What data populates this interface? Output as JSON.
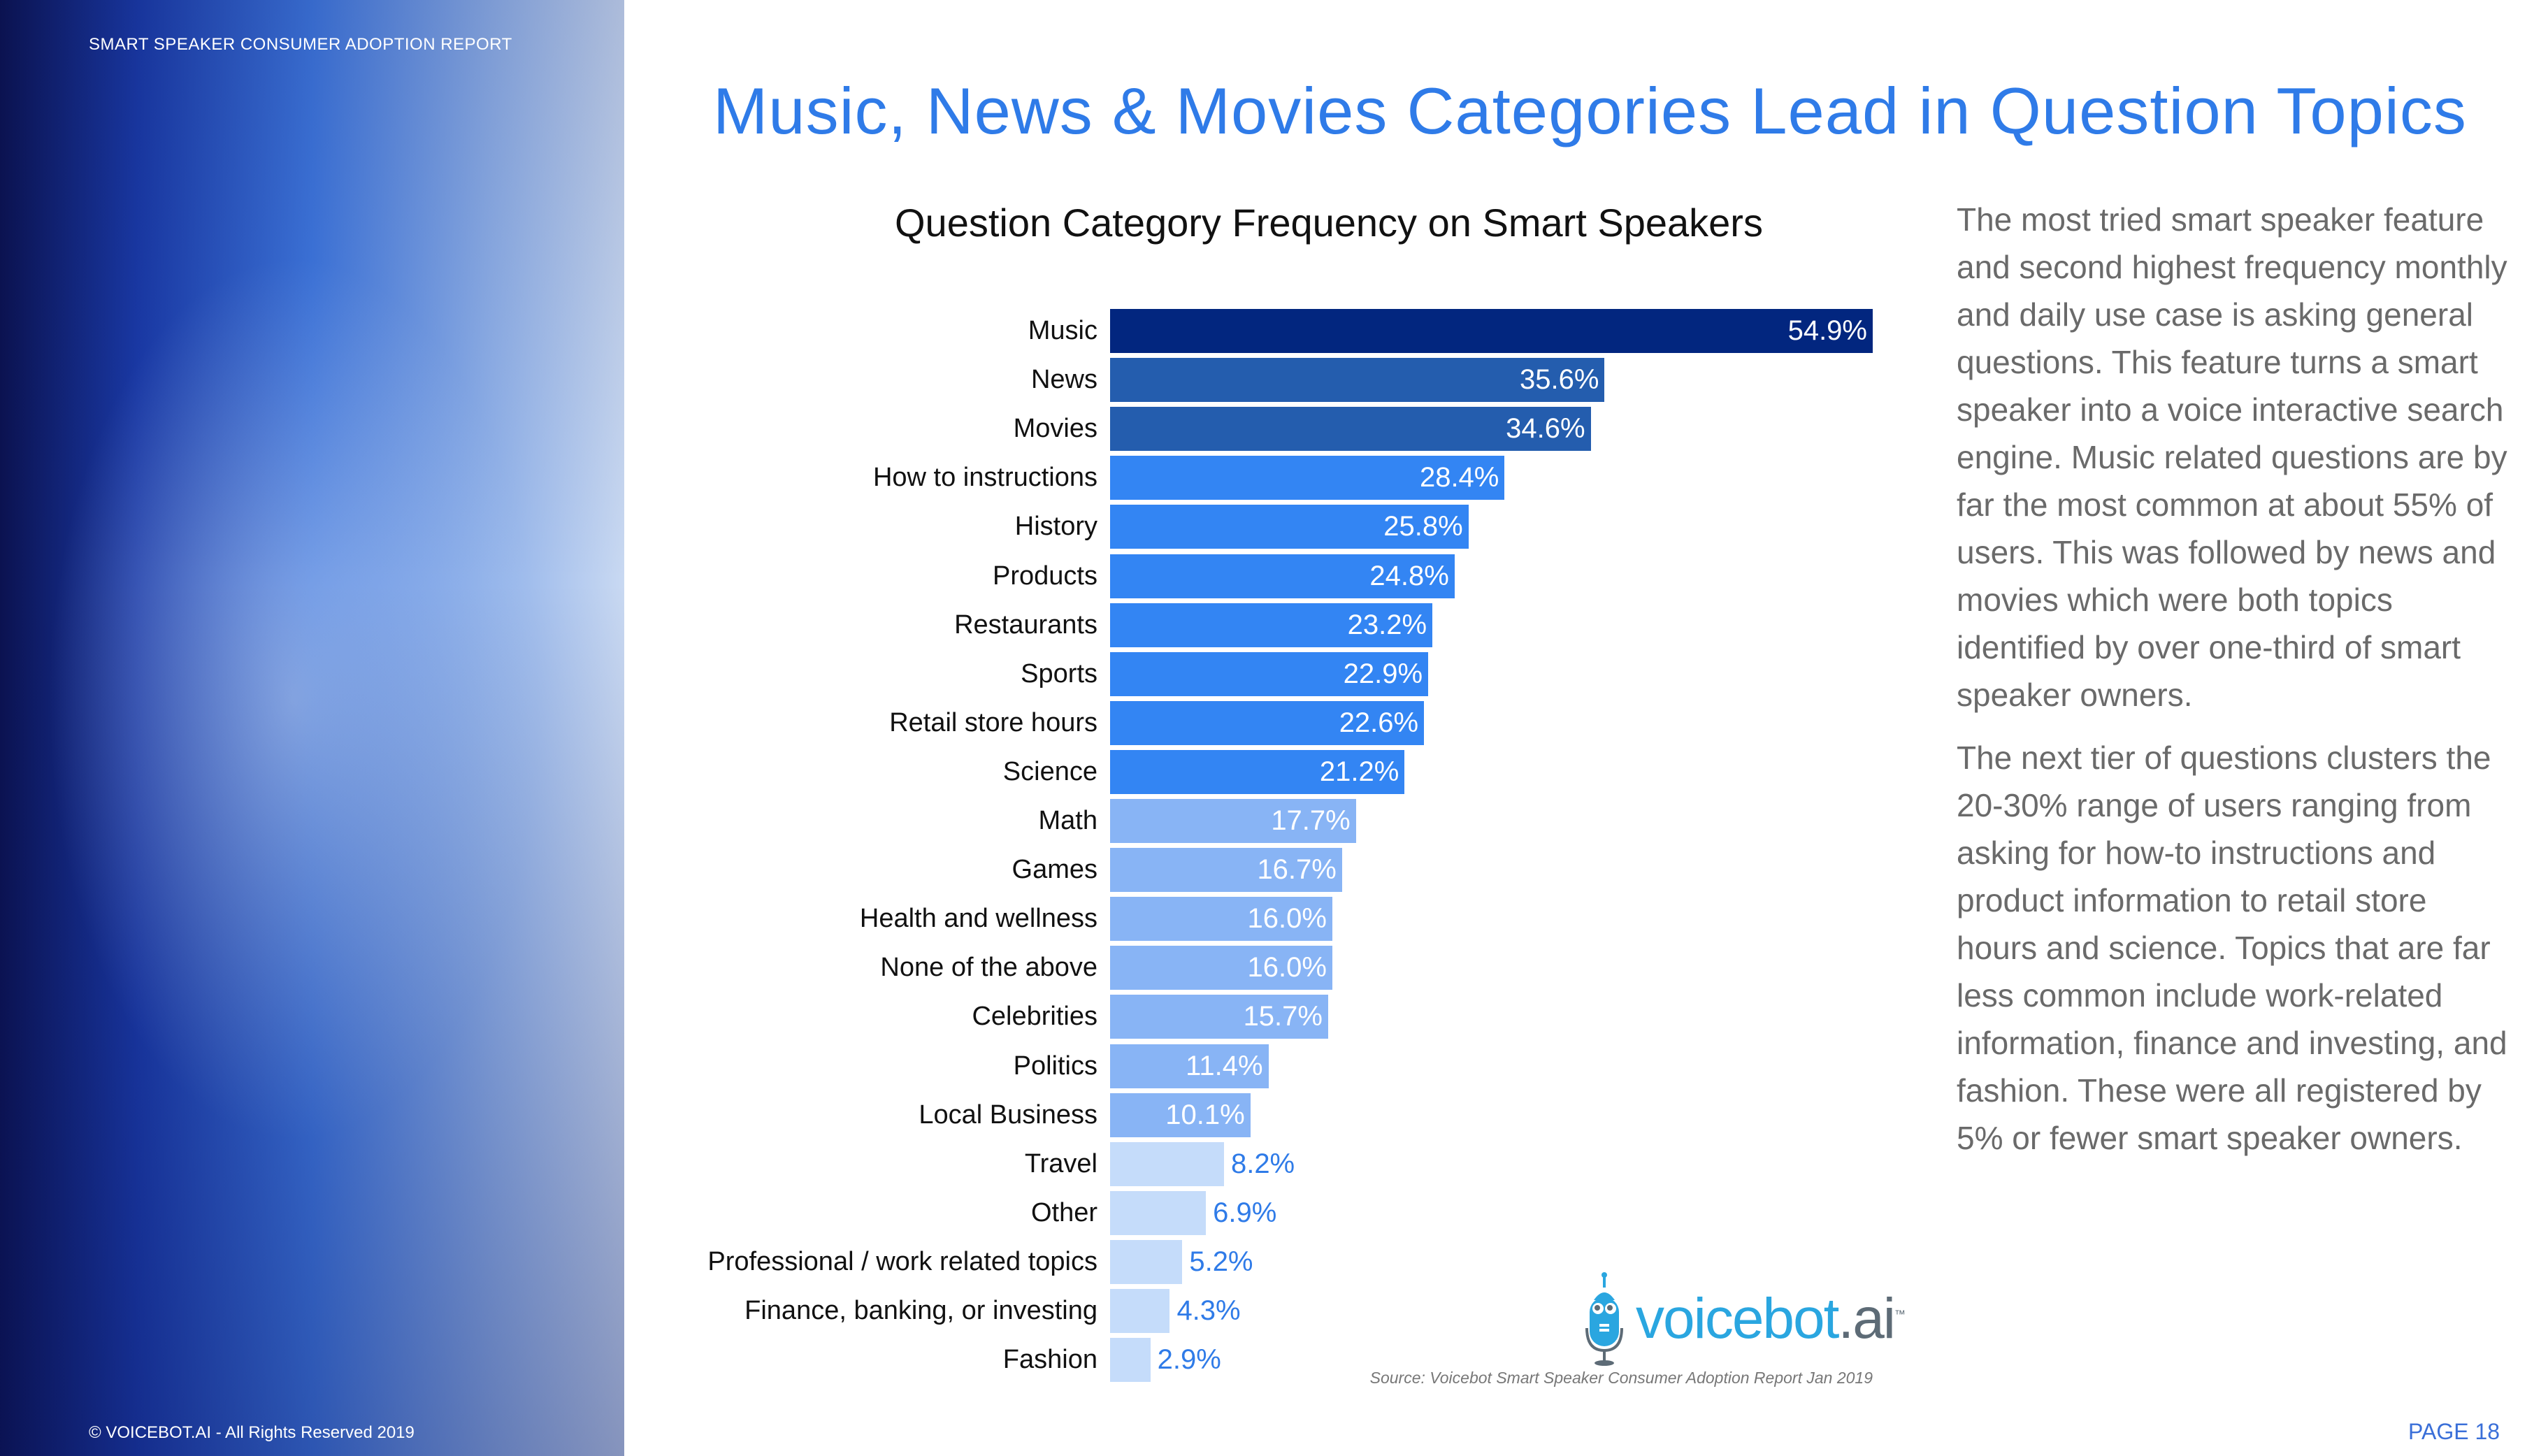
{
  "header": {
    "report_label": "SMART SPEAKER CONSUMER ADOPTION REPORT"
  },
  "footer": {
    "copyright": "© VOICEBOT.AI - All Rights Reserved 2019",
    "page": "PAGE 18"
  },
  "title": "Music, News & Movies Categories Lead in Question Topics",
  "chart_data": {
    "type": "bar",
    "orientation": "horizontal",
    "title": "Question Category Frequency on Smart Speakers",
    "xlabel": "",
    "ylabel": "",
    "xlim": [
      0,
      54.9
    ],
    "grid": false,
    "categories": [
      "Music",
      "News",
      "Movies",
      "How to instructions",
      "History",
      "Products",
      "Restaurants",
      "Sports",
      "Retail store hours",
      "Science",
      "Math",
      "Games",
      "Health and wellness",
      "None of the above",
      "Celebrities",
      "Politics",
      "Local Business",
      "Travel",
      "Other",
      "Professional / work related topics",
      "Finance, banking, or investing",
      "Fashion"
    ],
    "values": [
      54.9,
      35.6,
      34.6,
      28.4,
      25.8,
      24.8,
      23.2,
      22.9,
      22.6,
      21.2,
      17.7,
      16.7,
      16.0,
      16.0,
      15.7,
      11.4,
      10.1,
      8.2,
      6.9,
      5.2,
      4.3,
      2.9
    ],
    "labels": [
      "54.9%",
      "35.6%",
      "34.6%",
      "28.4%",
      "25.8%",
      "24.8%",
      "23.2%",
      "22.9%",
      "22.6%",
      "21.2%",
      "17.7%",
      "16.7%",
      "16.0%",
      "16.0%",
      "15.7%",
      "11.4%",
      "10.1%",
      "8.2%",
      "6.9%",
      "5.2%",
      "4.3%",
      "2.9%"
    ],
    "colors": {
      "top": "#02267F",
      "second_tier": "#245DAE",
      "third_tier": "#3385F3",
      "fourth_tier": "#88B4F5",
      "fifth_tier": "#C5DCFA",
      "outside_label": "#2F7BE8"
    }
  },
  "body": {
    "paragraph1": "The most tried smart speaker feature and second highest frequency monthly and daily use case is asking general questions. This feature turns a smart speaker into a voice interactive search engine. Music related questions are by far the most common at about 55% of users. This was followed by news and movies which were both topics identified by over one-third of smart speaker owners.",
    "paragraph2": "The next tier of questions clusters the 20-30% range of users ranging from asking for how-to instructions and product information to retail store hours and science. Topics that are far less common include work-related information, finance and investing, and fashion. These were all registered by 5% or fewer smart speaker owners."
  },
  "logo": {
    "text_main": "voicebot",
    "text_suffix": ".ai",
    "tm": "™"
  },
  "source": "Source: Voicebot Smart Speaker Consumer Adoption Report Jan 2019"
}
